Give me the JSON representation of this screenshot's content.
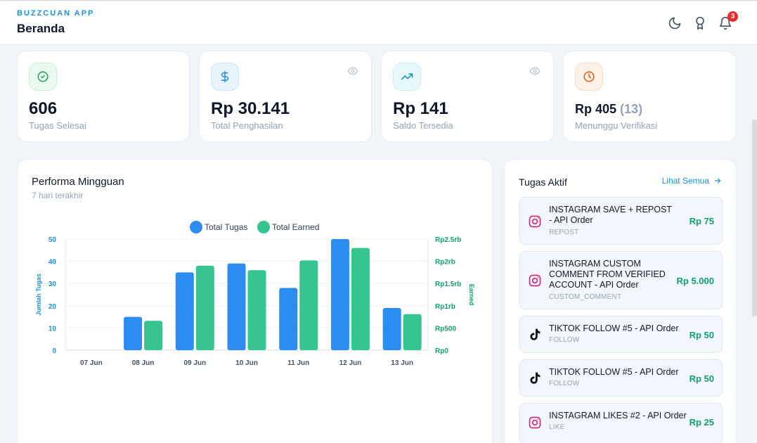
{
  "header": {
    "app_name": "BUZZCUAN APP",
    "page_title": "Beranda",
    "notification_count": "3",
    "icons": [
      "moon-icon",
      "award-icon",
      "bell-icon"
    ]
  },
  "stats": [
    {
      "value": "606",
      "label": "Tugas Selesai",
      "icon": "check-circle-icon",
      "color": "#16a34a"
    },
    {
      "value": "Rp 30.141",
      "label": "Total Penghasilan",
      "icon": "dollar-icon",
      "color": "#1d8fe1"
    },
    {
      "value": "Rp 141",
      "label": "Saldo Tersedia",
      "icon": "trending-up-icon",
      "color": "#0891b2"
    },
    {
      "value": "Rp 405",
      "value_sub": "(13)",
      "label": "Menunggu Verifikasi",
      "icon": "clock-icon",
      "color": "#ea580c"
    }
  ],
  "performance": {
    "title": "Performa Mingguan",
    "subtitle": "7 hari terakhir"
  },
  "chart_data": {
    "type": "bar",
    "categories": [
      "07 Jun",
      "08 Jun",
      "09 Jun",
      "10 Jun",
      "11 Jun",
      "12 Jun",
      "13 Jun"
    ],
    "series": [
      {
        "name": "Total Tugas",
        "axis": "left",
        "color": "#2d8cf0",
        "values": [
          0,
          15,
          35,
          39,
          28,
          50,
          19
        ]
      },
      {
        "name": "Total Earned",
        "axis": "right",
        "color": "#36c48f",
        "values": [
          0,
          660,
          1900,
          1800,
          2020,
          2300,
          810
        ]
      }
    ],
    "ylabel": "Jumlah Tugas",
    "y2label": "Earned",
    "ylim": [
      0,
      50
    ],
    "y2lim": [
      0,
      2500
    ],
    "yticks": [
      "0",
      "10",
      "20",
      "30",
      "40",
      "50"
    ],
    "y2ticks": [
      "Rp0",
      "Rp500",
      "Rp1rb",
      "Rp1.5rb",
      "Rp2rb",
      "Rp2.5rb"
    ],
    "legend": "top",
    "grid": true
  },
  "tasks": {
    "title": "Tugas Aktif",
    "see_all": "Lihat Semua",
    "items": [
      {
        "name": "INSTAGRAM SAVE + REPOST - API Order",
        "type": "REPOST",
        "price": "Rp 75",
        "platform": "instagram-icon"
      },
      {
        "name": "INSTAGRAM CUSTOM COMMENT FROM VERIFIED ACCOUNT - API Order",
        "type": "CUSTOM_COMMENT",
        "price": "Rp 5.000",
        "platform": "instagram-icon"
      },
      {
        "name": "TIKTOK FOLLOW #5 - API Order",
        "type": "FOLLOW",
        "price": "Rp 50",
        "platform": "tiktok-icon"
      },
      {
        "name": "TIKTOK FOLLOW #5 - API Order",
        "type": "FOLLOW",
        "price": "Rp 50",
        "platform": "tiktok-icon"
      },
      {
        "name": "INSTAGRAM LIKES #2 - API Order",
        "type": "LIKE",
        "price": "Rp 25",
        "platform": "instagram-icon"
      }
    ]
  }
}
